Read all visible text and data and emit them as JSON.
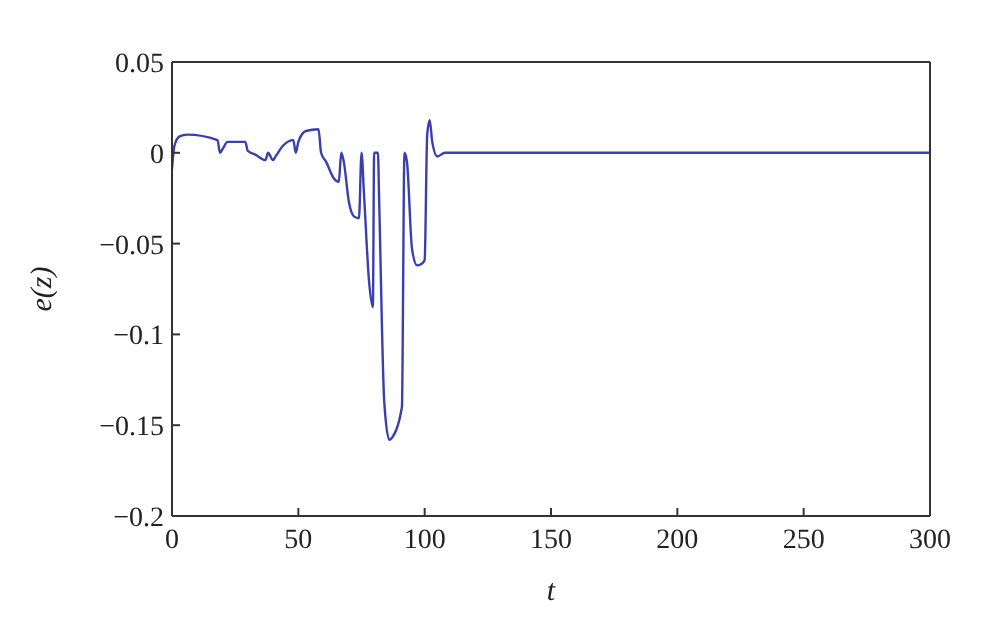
{
  "chart_data": {
    "type": "line",
    "xlabel": "t",
    "ylabel": "e(z)",
    "xlim": [
      0,
      300
    ],
    "xticks": [
      0,
      50,
      100,
      150,
      200,
      250,
      300
    ],
    "ylim": [
      -0.2,
      0.05
    ],
    "yticks": [
      -0.2,
      -0.15,
      -0.1,
      -0.05,
      0,
      0.05
    ],
    "marker": "none",
    "line_style": "solid",
    "x": [
      0,
      1,
      3,
      6,
      18,
      19,
      20,
      22,
      29,
      30,
      33,
      37,
      38,
      40,
      41,
      44,
      48,
      49,
      50,
      53,
      58,
      59,
      61,
      64,
      66,
      67,
      68,
      70,
      72,
      74,
      75,
      76,
      78,
      79.5,
      80,
      81.5,
      82,
      84,
      86,
      87,
      91,
      92,
      93,
      95,
      97,
      99,
      100,
      101,
      102,
      103,
      105,
      108,
      300
    ],
    "series": [
      {
        "color": "#3a3fb0",
        "values": [
          -0.009,
          0.004,
          0.009,
          0.01,
          0.007,
          0,
          0.002,
          0.006,
          0.006,
          0.001,
          -0.001,
          -0.004,
          0,
          -0.004,
          -0.002,
          0.004,
          0.007,
          0,
          0.006,
          0.012,
          0.013,
          0,
          -0.005,
          -0.014,
          -0.016,
          0,
          -0.005,
          -0.027,
          -0.035,
          -0.036,
          0,
          -0.023,
          -0.071,
          -0.085,
          0,
          0,
          -0.027,
          -0.137,
          -0.158,
          -0.157,
          -0.14,
          0,
          -0.005,
          -0.053,
          -0.062,
          -0.061,
          -0.059,
          0.01,
          0.018,
          0.006,
          -0.002,
          0,
          0
        ]
      }
    ]
  }
}
